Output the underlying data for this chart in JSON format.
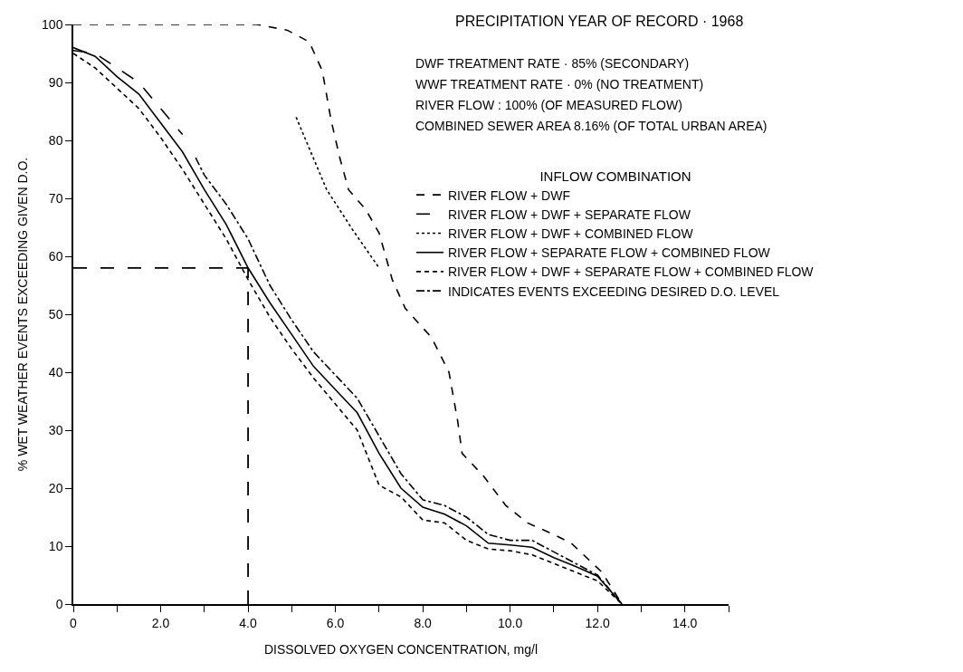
{
  "chart_data": {
    "type": "line",
    "title": "PRECIPITATION YEAR OF RECORD · 1968",
    "annotations": [
      "DWF TREATMENT RATE · 85% (SECONDARY)",
      "WWF TREATMENT RATE · 0% (NO TREATMENT)",
      "RIVER FLOW : 100% (OF MEASURED FLOW)",
      "COMBINED SEWER AREA 8.16% (OF TOTAL URBAN AREA)"
    ],
    "xlabel": "DISSOLVED OXYGEN CONCENTRATION, mg/l",
    "ylabel": "% WET WEATHER EVENTS EXCEEDING GIVEN D.O.",
    "legend_title": "INFLOW COMBINATION",
    "legend": "right",
    "marker": "none",
    "xlim": [
      0,
      15
    ],
    "xticks": [
      0,
      {
        "value": 1,
        "label": null
      },
      {
        "value": 2,
        "label": "2.0"
      },
      {
        "value": 3,
        "label": null
      },
      {
        "value": 4,
        "label": "4.0"
      },
      {
        "value": 5,
        "label": null
      },
      {
        "value": 6,
        "label": "6.0"
      },
      {
        "value": 7,
        "label": null
      },
      {
        "value": 8,
        "label": "8.0"
      },
      {
        "value": 9,
        "label": null
      },
      {
        "value": 10,
        "label": "10.0"
      },
      {
        "value": 11,
        "label": null
      },
      {
        "value": 12,
        "label": "12.0"
      },
      {
        "value": 13,
        "label": null
      },
      {
        "value": 14,
        "label": "14.0"
      },
      {
        "value": 15,
        "label": null
      }
    ],
    "ylim": [
      0,
      100
    ],
    "yticks": [
      0,
      10,
      20,
      30,
      40,
      50,
      60,
      70,
      80,
      90,
      100
    ],
    "ref_lines": [
      {
        "axis": "y",
        "value": 58,
        "line_style": "longdash",
        "color": "#000000"
      },
      {
        "axis": "x",
        "value": 4,
        "line_style": "longdash",
        "color": "#000000"
      }
    ],
    "series": [
      {
        "name": "RIVER FLOW + DWF",
        "color": "#000000",
        "line_style": "dashed",
        "x": [
          0,
          4.2,
          4.9,
          5.4,
          5.7,
          5.9,
          6.1,
          6.3,
          6.7,
          7.0,
          7.3,
          7.6,
          8.2,
          8.6,
          8.8,
          8.9,
          9.4,
          9.9,
          10.4,
          11.0,
          11.4,
          12.1,
          12.56
        ],
        "values": [
          100,
          100,
          99,
          97,
          92,
          83.5,
          77,
          71.5,
          68,
          64,
          56,
          51,
          46,
          40,
          31.5,
          26,
          22,
          17,
          14,
          12,
          10.5,
          5.5,
          0
        ]
      },
      {
        "name": "RIVER FLOW + DWF + SEPARATE FLOW",
        "color": "#000000",
        "line_style": "longdash",
        "x": [
          0,
          0.5,
          1,
          1.5,
          2,
          2.5
        ],
        "values": [
          95.5,
          95,
          92.5,
          90,
          85.5,
          81
        ]
      },
      {
        "name": "RIVER FLOW + DWF + COMBINED FLOW",
        "color": "#000000",
        "line_style": "dotted",
        "x": [
          5.1,
          5.8,
          6.4,
          7.0
        ],
        "values": [
          84,
          71.5,
          64.5,
          58
        ]
      },
      {
        "name": "RIVER FLOW + SEPARATE FLOW + COMBINED FLOW",
        "color": "#000000",
        "line_style": "solid",
        "x": [
          0,
          0.5,
          1,
          1.5,
          2,
          2.5,
          3,
          3.5,
          4,
          4.5,
          5,
          5.5,
          6,
          6.5,
          7,
          7.5,
          8,
          8.5,
          9,
          9.5,
          10,
          10.5,
          11,
          11.5,
          12,
          12.56
        ],
        "values": [
          96,
          94.5,
          91,
          88,
          83,
          78,
          71.5,
          65.5,
          58,
          52,
          46.5,
          41,
          37,
          33,
          26,
          20,
          16.7,
          15.5,
          13.5,
          10.5,
          10.2,
          9.8,
          8,
          6.5,
          4.8,
          0
        ]
      },
      {
        "name": "RIVER FLOW + DWF + SEPARATE FLOW + COMBINED FLOW",
        "color": "#000000",
        "line_style": "shortdash",
        "x": [
          0,
          0.5,
          1,
          1.5,
          2,
          2.5,
          3,
          3.5,
          4,
          4.5,
          5,
          5.5,
          6,
          6.5,
          7,
          7.5,
          8,
          8.5,
          9,
          9.5,
          10,
          10.5,
          11,
          11.5,
          12,
          12.56
        ],
        "values": [
          95,
          92.5,
          89,
          85.5,
          80.5,
          75,
          69,
          63,
          56,
          49.5,
          44,
          39,
          34.5,
          30,
          20.5,
          18.5,
          14.5,
          14,
          11,
          9.5,
          9.2,
          8.5,
          7,
          5.5,
          4,
          0
        ]
      },
      {
        "name": "INDICATES EVENTS EXCEEDING DESIRED D.O. LEVEL",
        "color": "#000000",
        "line_style": "dashdot",
        "x": [
          2.8,
          3,
          3.5,
          4,
          4.5,
          5,
          5.5,
          6,
          6.5,
          7,
          7.5,
          8,
          8.5,
          9,
          9.5,
          10,
          10.5,
          11,
          11.5,
          12,
          12.56
        ],
        "values": [
          77,
          74,
          69,
          63,
          55,
          49,
          43.5,
          39.5,
          35.5,
          29,
          22.5,
          18,
          17,
          15,
          12,
          11,
          11,
          9,
          7,
          5,
          0
        ]
      }
    ]
  }
}
